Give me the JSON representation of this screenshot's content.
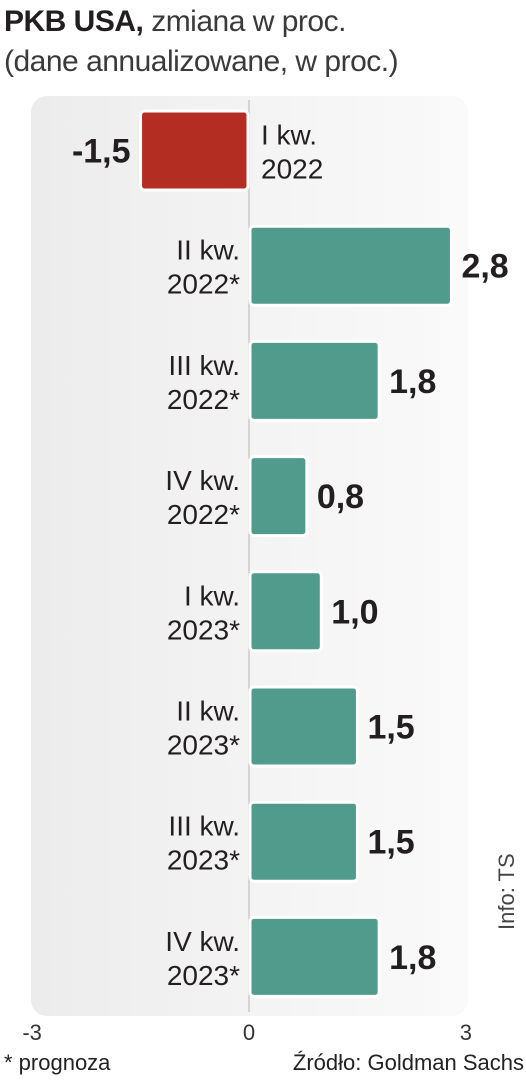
{
  "header": {
    "title_bold": "PKB USA,",
    "title_rest": " zmiana w proc.",
    "subtitle": "(dane annualizowane, w proc.)"
  },
  "footer": {
    "note": "* prognoza",
    "source": "Źródło: Goldman Sachs",
    "credit": "Info: TS"
  },
  "colors": {
    "negative": "#b42d23",
    "positive": "#519b8d",
    "panel": "#efefef"
  },
  "chart_data": {
    "type": "bar",
    "orientation": "horizontal",
    "categories": [
      [
        "I kw.",
        "2022"
      ],
      [
        "II kw.",
        "2022*"
      ],
      [
        "III kw.",
        "2022*"
      ],
      [
        "IV kw.",
        "2022*"
      ],
      [
        "I kw.",
        "2023*"
      ],
      [
        "II kw.",
        "2023*"
      ],
      [
        "III kw.",
        "2023*"
      ],
      [
        "IV kw.",
        "2023*"
      ]
    ],
    "values": [
      -1.5,
      2.8,
      1.8,
      0.8,
      1.0,
      1.5,
      1.5,
      1.8
    ],
    "value_labels": [
      "-1,5",
      "2,8",
      "1,8",
      "0,8",
      "1,0",
      "1,5",
      "1,5",
      "1,8"
    ],
    "xlim": [
      -3,
      3
    ],
    "xticks": [
      -3,
      0,
      3
    ],
    "xtick_labels": [
      "-3",
      "0",
      "3"
    ],
    "grid": false
  }
}
